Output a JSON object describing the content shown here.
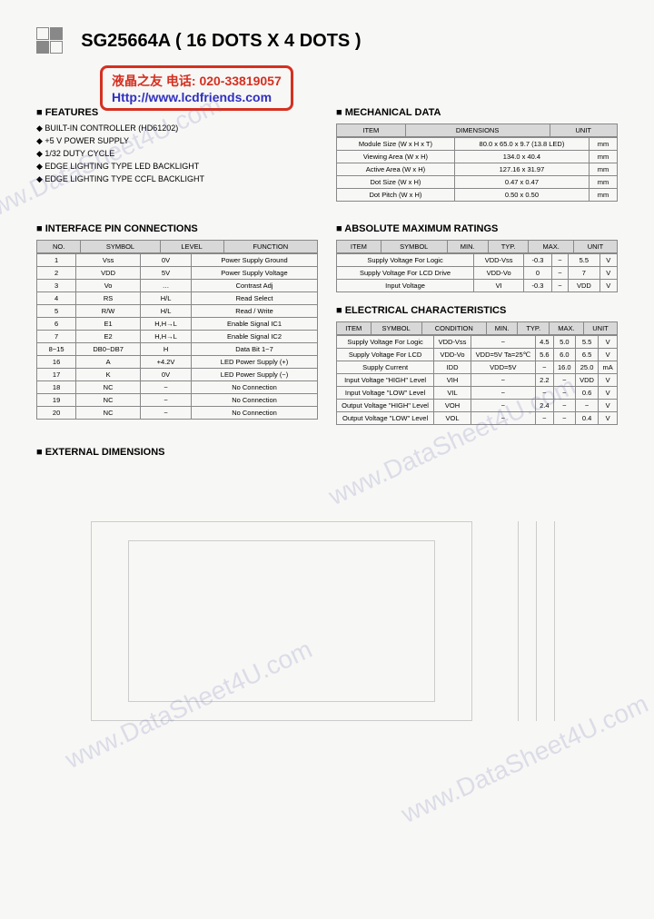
{
  "header": {
    "title": "SG25664A ( 16 DOTS X 4 DOTS )"
  },
  "stamp": {
    "line1": "液晶之友 电话: 020-33819057",
    "line2": "Http://www.lcdfriends.com"
  },
  "features": {
    "title": "FEATURES",
    "items": [
      "BUILT-IN CONTROLLER (HD61202)",
      "+5 V POWER SUPPLY",
      "1/32 DUTY CYCLE",
      "EDGE LIGHTING TYPE LED BACKLIGHT",
      "EDGE LIGHTING TYPE CCFL BACKLIGHT"
    ]
  },
  "mechanical": {
    "title": "MECHANICAL DATA",
    "headers": [
      "ITEM",
      "DIMENSIONS",
      "UNIT"
    ],
    "rows": [
      [
        "Module Size (W x H x T)",
        "80.0 x 65.0 x 9.7 (13.8 LED)",
        "mm"
      ],
      [
        "Viewing Area (W x H)",
        "134.0 x 40.4",
        "mm"
      ],
      [
        "Active Area (W x H)",
        "127.16 x 31.97",
        "mm"
      ],
      [
        "Dot Size (W x H)",
        "0.47 x 0.47",
        "mm"
      ],
      [
        "Dot Pitch (W x H)",
        "0.50 x 0.50",
        "mm"
      ]
    ]
  },
  "interface": {
    "title": "INTERFACE PIN CONNECTIONS",
    "headers": [
      "NO.",
      "SYMBOL",
      "LEVEL",
      "FUNCTION"
    ],
    "rows": [
      [
        "1",
        "Vss",
        "0V",
        "Power Supply Ground"
      ],
      [
        "2",
        "VDD",
        "5V",
        "Power Supply Voltage"
      ],
      [
        "3",
        "Vo",
        "…",
        "Contrast Adj"
      ],
      [
        "4",
        "RS",
        "H/L",
        "Read Select"
      ],
      [
        "5",
        "R/W",
        "H/L",
        "Read / Write"
      ],
      [
        "6",
        "E1",
        "H,H→L",
        "Enable Signal IC1"
      ],
      [
        "7",
        "E2",
        "H,H→L",
        "Enable Signal IC2"
      ],
      [
        "8~15",
        "DB0~DB7",
        "H",
        "Data Bit 1~7"
      ],
      [
        "16",
        "A",
        "+4.2V",
        "LED Power Supply (+)"
      ],
      [
        "17",
        "K",
        "0V",
        "LED Power Supply (−)"
      ],
      [
        "18",
        "NC",
        "−",
        "No Connection"
      ],
      [
        "19",
        "NC",
        "−",
        "No Connection"
      ],
      [
        "20",
        "NC",
        "−",
        "No Connection"
      ]
    ]
  },
  "absolute": {
    "title": "ABSOLUTE MAXIMUM RATINGS",
    "headers": [
      "ITEM",
      "SYMBOL",
      "MIN.",
      "TYP.",
      "MAX.",
      "UNIT"
    ],
    "rows": [
      [
        "Supply Voltage For Logic",
        "VDD-Vss",
        "-0.3",
        "−",
        "5.5",
        "V"
      ],
      [
        "Supply Voltage For LCD Drive",
        "VDD-Vo",
        "0",
        "−",
        "7",
        "V"
      ],
      [
        "Input Voltage",
        "VI",
        "-0.3",
        "−",
        "VDD",
        "V"
      ]
    ]
  },
  "electrical": {
    "title": "ELECTRICAL CHARACTERISTICS",
    "headers": [
      "ITEM",
      "SYMBOL",
      "CONDITION",
      "MIN.",
      "TYP.",
      "MAX.",
      "UNIT"
    ],
    "rows": [
      [
        "Supply Voltage For Logic",
        "VDD-Vss",
        "−",
        "4.5",
        "5.0",
        "5.5",
        "V"
      ],
      [
        "Supply Voltage For LCD",
        "VDD-Vo",
        "VDD=5V Ta=25℃",
        "5.6",
        "6.0",
        "6.5",
        "V"
      ],
      [
        "Supply Current",
        "IDD",
        "VDD=5V",
        "−",
        "16.0",
        "25.0",
        "mA"
      ],
      [
        "Input Voltage \"HIGH\" Level",
        "VIH",
        "−",
        "2.2",
        "−",
        "VDD",
        "V"
      ],
      [
        "Input Voltage \"LOW\" Level",
        "VIL",
        "−",
        "−",
        "−",
        "0.6",
        "V"
      ],
      [
        "Output Voltage \"HIGH\" Level",
        "VOH",
        "−",
        "2.4",
        "−",
        "−",
        "V"
      ],
      [
        "Output Voltage \"LOW\" Level",
        "VOL",
        "−",
        "−",
        "−",
        "0.4",
        "V"
      ]
    ]
  },
  "external": {
    "title": "EXTERNAL DIMENSIONS"
  },
  "watermark": "www.DataSheet4U.com",
  "colors": {
    "background": "#f7f7f5",
    "border": "#888888",
    "header_bg": "#d8d8d8",
    "stamp_border": "#d53020",
    "stamp_text": "#d53020",
    "link": "#3030c0",
    "watermark": "rgba(100,100,180,0.18)"
  }
}
